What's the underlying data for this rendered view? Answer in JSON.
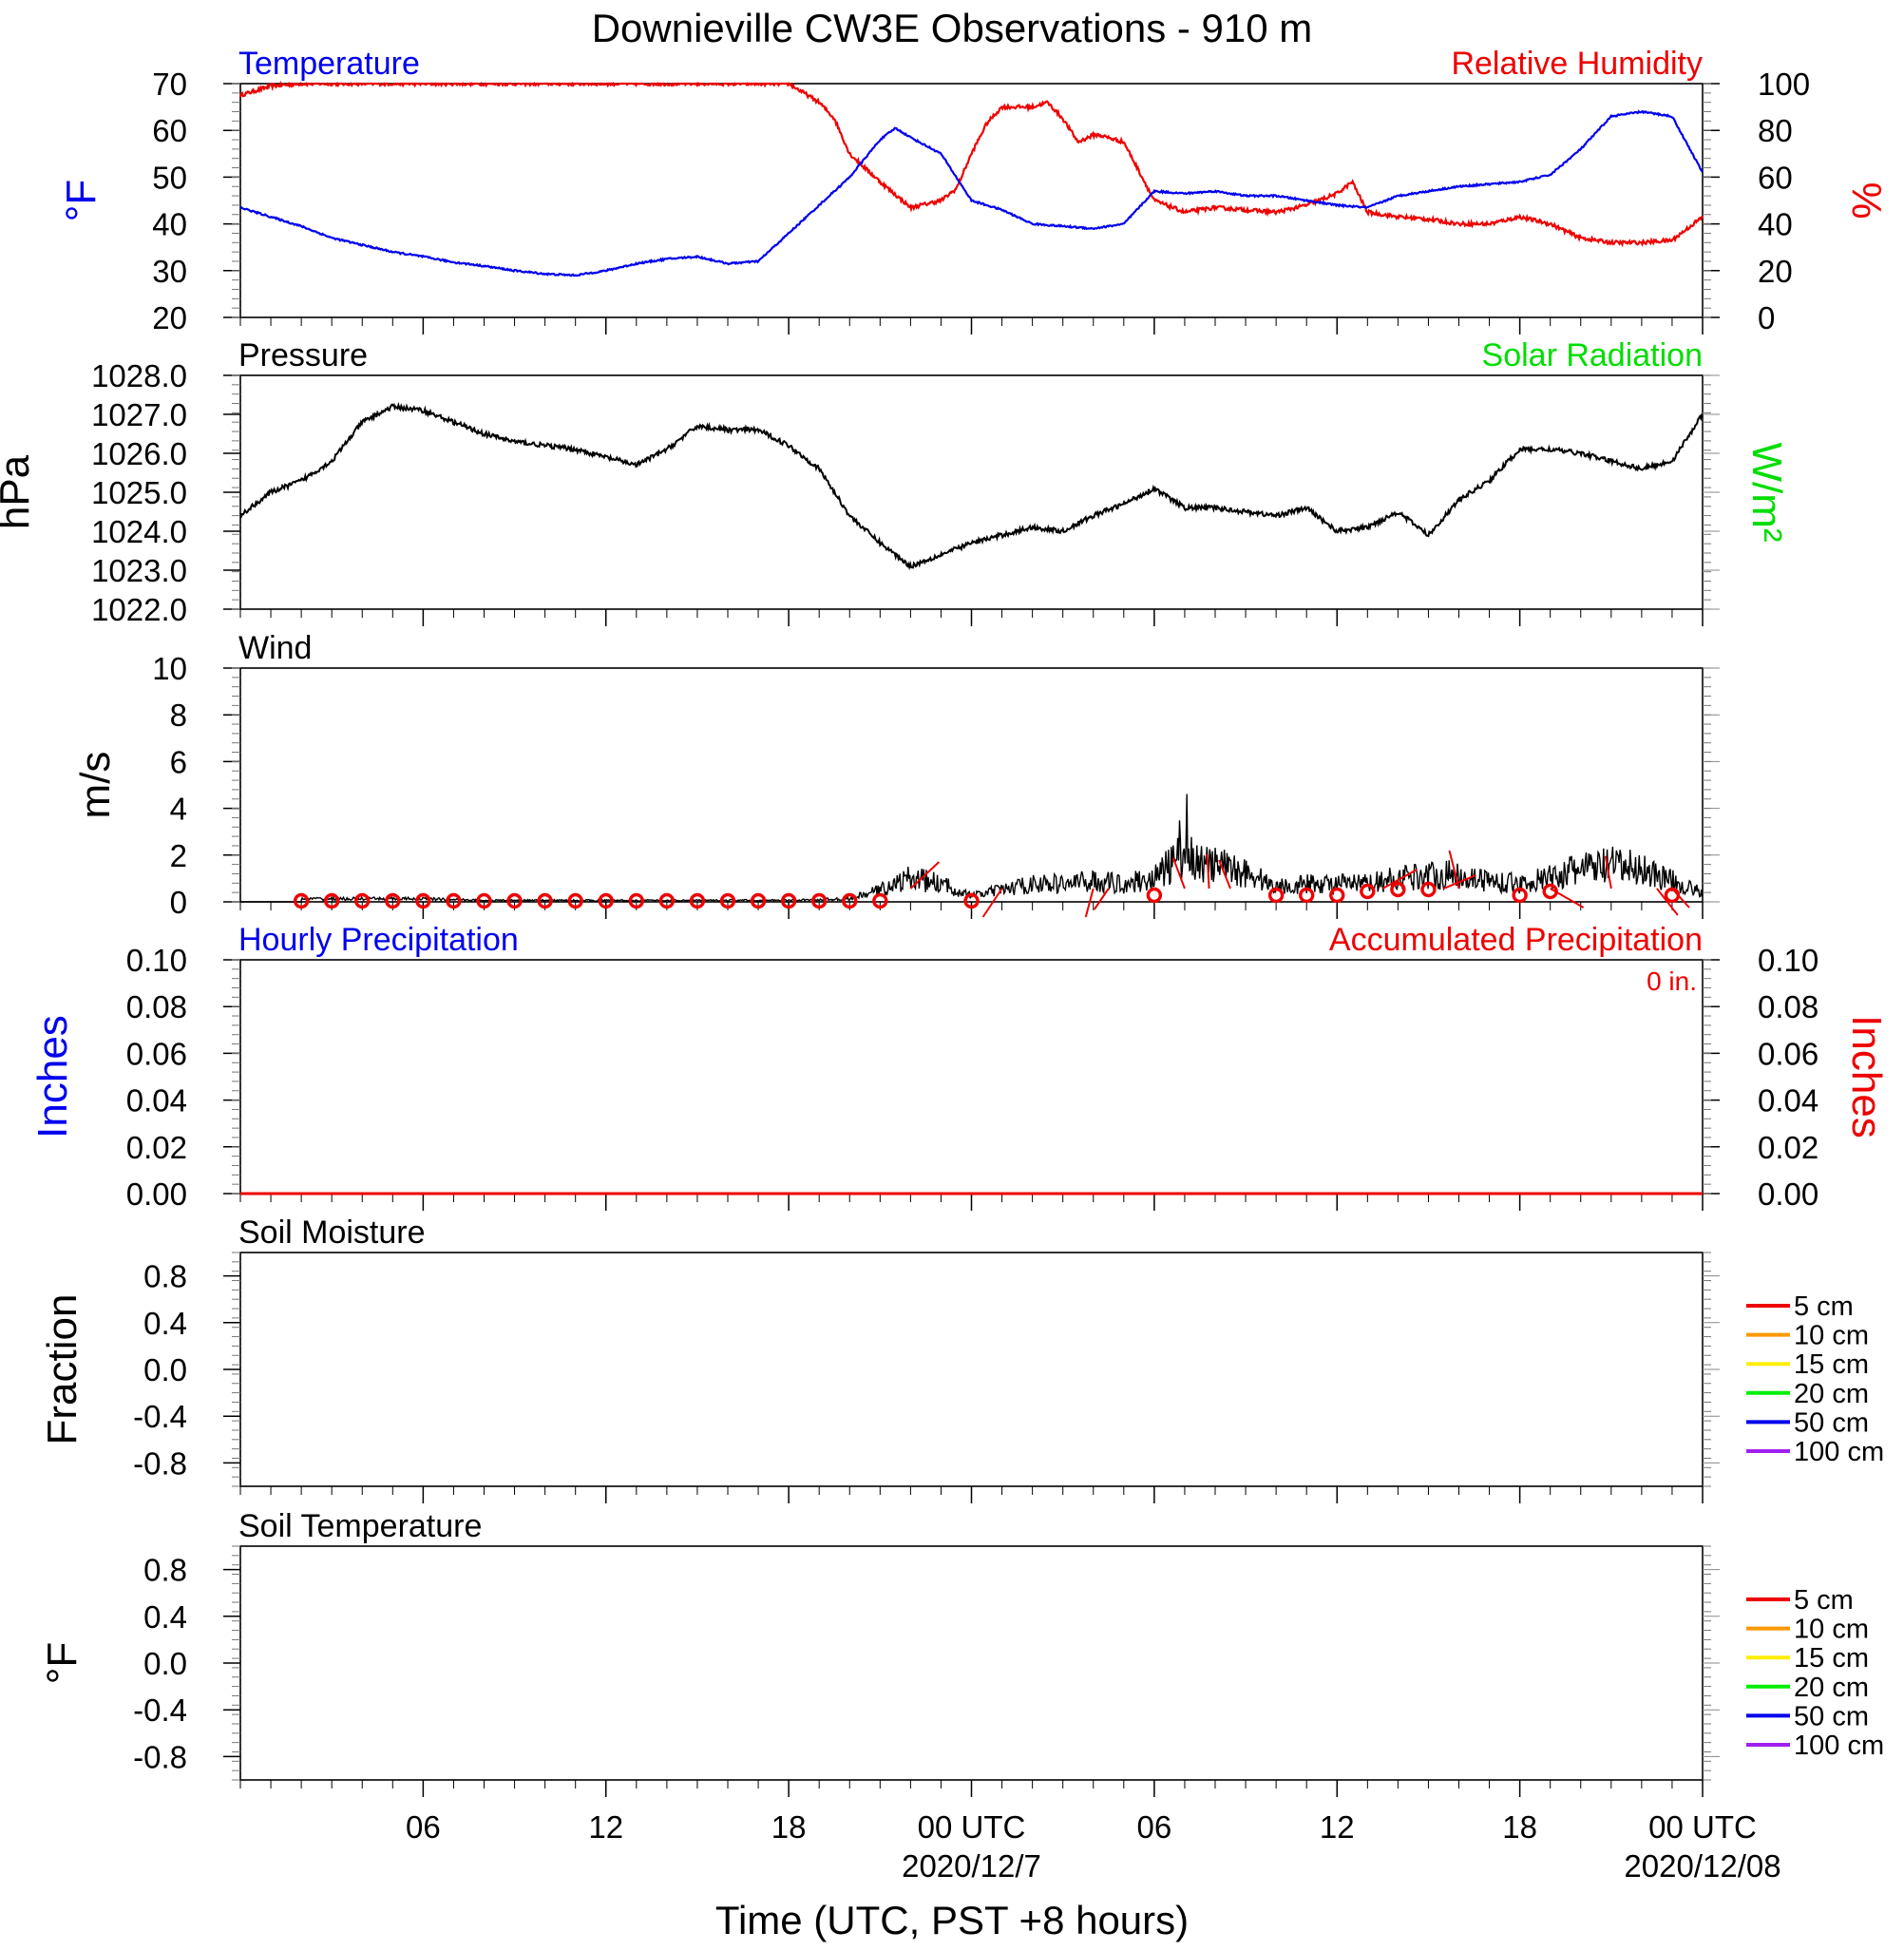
{
  "title": "Downieville CW3E Observations - 910 m",
  "x_axis": {
    "label": "Time (UTC, PST +8 hours)",
    "range_hours": [
      0,
      48
    ],
    "ticks": [
      {
        "h": 6,
        "label": "06",
        "sub": ""
      },
      {
        "h": 12,
        "label": "12",
        "sub": ""
      },
      {
        "h": 18,
        "label": "18",
        "sub": ""
      },
      {
        "h": 24,
        "label": "00 UTC",
        "sub": "2020/12/7"
      },
      {
        "h": 30,
        "label": "06",
        "sub": ""
      },
      {
        "h": 36,
        "label": "12",
        "sub": ""
      },
      {
        "h": 42,
        "label": "18",
        "sub": ""
      },
      {
        "h": 48,
        "label": "00 UTC",
        "sub": "2020/12/08"
      }
    ]
  },
  "colors": {
    "temperature": "#0000ee",
    "humidity": "#ee0000",
    "pressure": "#000000",
    "solar": "#00dd00",
    "wind": "#000000",
    "wind_barb": "#ee0000",
    "hourly_precip": "#0000ee",
    "accum_precip": "#ee0000"
  },
  "panels": {
    "temp_rh": {
      "left_title": "Temperature",
      "right_title": "Relative Humidity",
      "left_unit": "°F",
      "right_unit": "%",
      "left_ylim": [
        20,
        70
      ],
      "left_ticks": [
        "70",
        "60",
        "50",
        "40",
        "30",
        "20"
      ],
      "right_ylim": [
        0,
        100
      ],
      "right_ticks": [
        "100",
        "80",
        "60",
        "40",
        "20",
        "0"
      ]
    },
    "pressure": {
      "left_title": "Pressure",
      "right_title": "Solar Radiation",
      "left_unit": "hPa",
      "right_unit": "W/m²",
      "ylim": [
        1022,
        1028
      ],
      "ticks": [
        "1028.0",
        "1027.0",
        "1026.0",
        "1025.0",
        "1024.0",
        "1023.0",
        "1022.0"
      ]
    },
    "wind": {
      "left_title": "Wind",
      "left_unit": "m/s",
      "ylim": [
        0,
        10
      ],
      "ticks": [
        "10",
        "8",
        "6",
        "4",
        "2",
        "0"
      ]
    },
    "precip": {
      "left_title": "Hourly Precipitation",
      "right_title": "Accumulated Precipitation",
      "total": "0 in.",
      "left_unit": "Inches",
      "right_unit": "Inches",
      "ylim": [
        0,
        0.1
      ],
      "ticks": [
        "0.10",
        "0.08",
        "0.06",
        "0.04",
        "0.02",
        "0.00"
      ]
    },
    "soil_moisture": {
      "left_title": "Soil Moisture",
      "left_unit": "Fraction",
      "ylim": [
        -1,
        1
      ],
      "ticks": [
        "0.8",
        "0.4",
        "0.0",
        "-0.4",
        "-0.8"
      ]
    },
    "soil_temp": {
      "left_title": "Soil Temperature",
      "left_unit": "°F",
      "ylim": [
        -1,
        1
      ],
      "ticks": [
        "0.8",
        "0.4",
        "0.0",
        "-0.4",
        "-0.8"
      ]
    }
  },
  "soil_legend": [
    {
      "label": "5 cm",
      "color": "#ee0000"
    },
    {
      "label": "10 cm",
      "color": "#ff9900"
    },
    {
      "label": "15 cm",
      "color": "#ffee00"
    },
    {
      "label": "20 cm",
      "color": "#00ee00"
    },
    {
      "label": "50 cm",
      "color": "#0000ee"
    },
    {
      "label": "100 cm",
      "color": "#a020f0"
    }
  ],
  "chart_data": [
    {
      "type": "line",
      "title": "Temperature",
      "ylabel": "°F",
      "ylim": [
        20,
        70
      ],
      "series": [
        {
          "name": "Temperature",
          "x": [
            0,
            1,
            2,
            3,
            4,
            5,
            6,
            7,
            8,
            9,
            10,
            11,
            12,
            13,
            14,
            15,
            16,
            17,
            18,
            19,
            20,
            21,
            21.5,
            22,
            23,
            24,
            25,
            26,
            27,
            28,
            29,
            30,
            31,
            32,
            33,
            34,
            35,
            36,
            37,
            38,
            39,
            40,
            41,
            42,
            43,
            44,
            45,
            46,
            47,
            48
          ],
          "y": [
            43.5,
            41.5,
            39.5,
            37,
            35.5,
            34,
            33,
            31.8,
            31,
            30,
            29.3,
            29,
            30,
            31.5,
            32.5,
            33,
            31.5,
            32,
            38,
            44,
            50,
            58,
            60.5,
            58.5,
            55,
            45,
            43,
            40,
            39.5,
            39,
            40,
            47,
            46.5,
            47,
            46,
            46,
            45,
            44,
            43.5,
            46,
            47,
            48,
            48.5,
            49,
            50.5,
            56,
            63,
            64,
            63,
            51
          ]
        }
      ]
    },
    {
      "type": "line",
      "title": "Relative Humidity",
      "ylabel": "%",
      "ylim": [
        0,
        100
      ],
      "series": [
        {
          "name": "Relative Humidity",
          "x": [
            0,
            1,
            2,
            3,
            4,
            5,
            6,
            7,
            8,
            9,
            10,
            11,
            12,
            13,
            14,
            15,
            16,
            17,
            18,
            19,
            19.5,
            20,
            21,
            22,
            23,
            23.5,
            24,
            24.5,
            25,
            26,
            26.5,
            27,
            27.5,
            28,
            28.2,
            29,
            30,
            31,
            32,
            33,
            34,
            35,
            36,
            36.5,
            37,
            38,
            39,
            40,
            41,
            42,
            43,
            44,
            45,
            46,
            47,
            48
          ],
          "y": [
            95,
            99,
            100,
            100,
            100,
            100,
            100,
            100,
            100,
            100,
            100,
            100,
            100,
            100,
            100,
            100,
            100,
            100,
            100,
            92,
            85,
            70,
            58,
            47,
            50,
            55,
            70,
            83,
            90,
            90,
            92,
            85,
            75,
            78,
            78,
            75,
            50,
            45,
            47,
            46,
            45,
            48,
            53,
            58,
            45,
            43,
            42,
            40,
            40,
            43,
            40,
            34,
            32,
            32,
            33,
            43
          ]
        }
      ]
    },
    {
      "type": "line",
      "title": "Pressure",
      "ylabel": "hPa",
      "ylim": [
        1022,
        1028
      ],
      "series": [
        {
          "name": "Pressure",
          "x": [
            0,
            1,
            2,
            3,
            4,
            5,
            6,
            7,
            8,
            9,
            10,
            11,
            12,
            13,
            14,
            15,
            16,
            17,
            18,
            19,
            20,
            21,
            22,
            23,
            24,
            25,
            26,
            27,
            28,
            29,
            30,
            31,
            32,
            33,
            34,
            35,
            36,
            37,
            38,
            39,
            40,
            41,
            42,
            43,
            44,
            45,
            46,
            47,
            48
          ],
          "y": [
            1024.4,
            1025,
            1025.3,
            1025.8,
            1026.8,
            1027.2,
            1027.1,
            1026.8,
            1026.5,
            1026.3,
            1026.2,
            1026.1,
            1025.9,
            1025.7,
            1026.1,
            1026.7,
            1026.6,
            1026.6,
            1026.2,
            1025.6,
            1024.4,
            1023.7,
            1023.1,
            1023.4,
            1023.7,
            1023.9,
            1024.1,
            1024.0,
            1024.4,
            1024.7,
            1025.1,
            1024.6,
            1024.6,
            1024.5,
            1024.4,
            1024.6,
            1024.0,
            1024.1,
            1024.5,
            1023.9,
            1024.8,
            1025.3,
            1026.1,
            1026.1,
            1026.0,
            1025.8,
            1025.6,
            1025.8,
            1027.0
          ]
        }
      ]
    },
    {
      "type": "line",
      "title": "Wind",
      "ylabel": "m/s",
      "ylim": [
        0,
        10
      ],
      "series": [
        {
          "name": "Wind",
          "x": [
            0,
            2,
            4,
            6,
            8,
            10,
            12,
            14,
            16,
            18,
            20,
            21,
            22,
            23,
            24,
            25,
            26,
            27,
            28,
            29,
            30,
            31,
            31.5,
            32,
            33,
            34,
            35,
            36,
            37,
            38,
            39,
            40,
            41,
            42,
            43,
            44,
            45,
            46,
            47,
            48
          ],
          "y": [
            0,
            0.1,
            0.1,
            0.1,
            0.05,
            0.05,
            0.05,
            0.05,
            0.05,
            0.05,
            0.1,
            0.4,
            0.8,
            0.6,
            0.2,
            0.4,
            0.6,
            0.6,
            0.7,
            0.6,
            0.8,
            1.6,
            1.3,
            1.2,
            1.0,
            0.5,
            0.6,
            0.6,
            0.6,
            0.8,
            0.9,
            0.9,
            0.7,
            0.6,
            0.8,
            1.1,
            1.2,
            1.1,
            0.7,
            0.3
          ]
        }
      ]
    },
    {
      "type": "line",
      "title": "Hourly Precipitation",
      "ylabel": "Inches",
      "ylim": [
        0,
        0.1
      ],
      "series": [
        {
          "name": "Hourly Precipitation",
          "x": [
            0,
            48
          ],
          "y": [
            0,
            0
          ]
        }
      ]
    }
  ]
}
